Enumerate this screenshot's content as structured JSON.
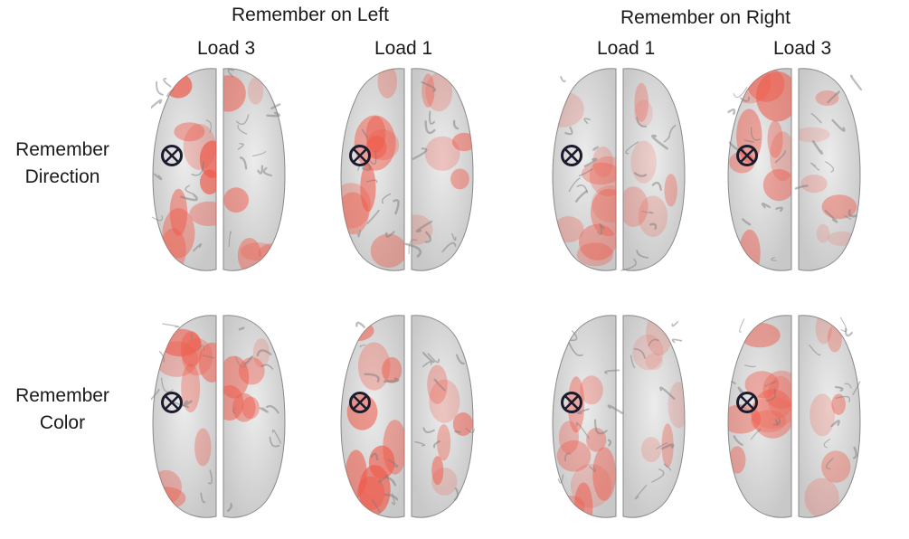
{
  "groups": [
    {
      "label": "Remember on Left"
    },
    {
      "label": "Remember on Right"
    }
  ],
  "columns": [
    {
      "label": "Load 3"
    },
    {
      "label": "Load 1"
    },
    {
      "label": "Load 1"
    },
    {
      "label": "Load 3"
    }
  ],
  "rows": [
    {
      "line1": "Remember",
      "line2": "Direction"
    },
    {
      "line1": "Remember",
      "line2": "Color"
    }
  ],
  "marker": {
    "symbol": "⊗",
    "color": "#1c1c2e"
  },
  "colors": {
    "activation": "#ef5a4a",
    "cortex": "#c8c8c8",
    "cortex_dark": "#7a7a7a"
  }
}
